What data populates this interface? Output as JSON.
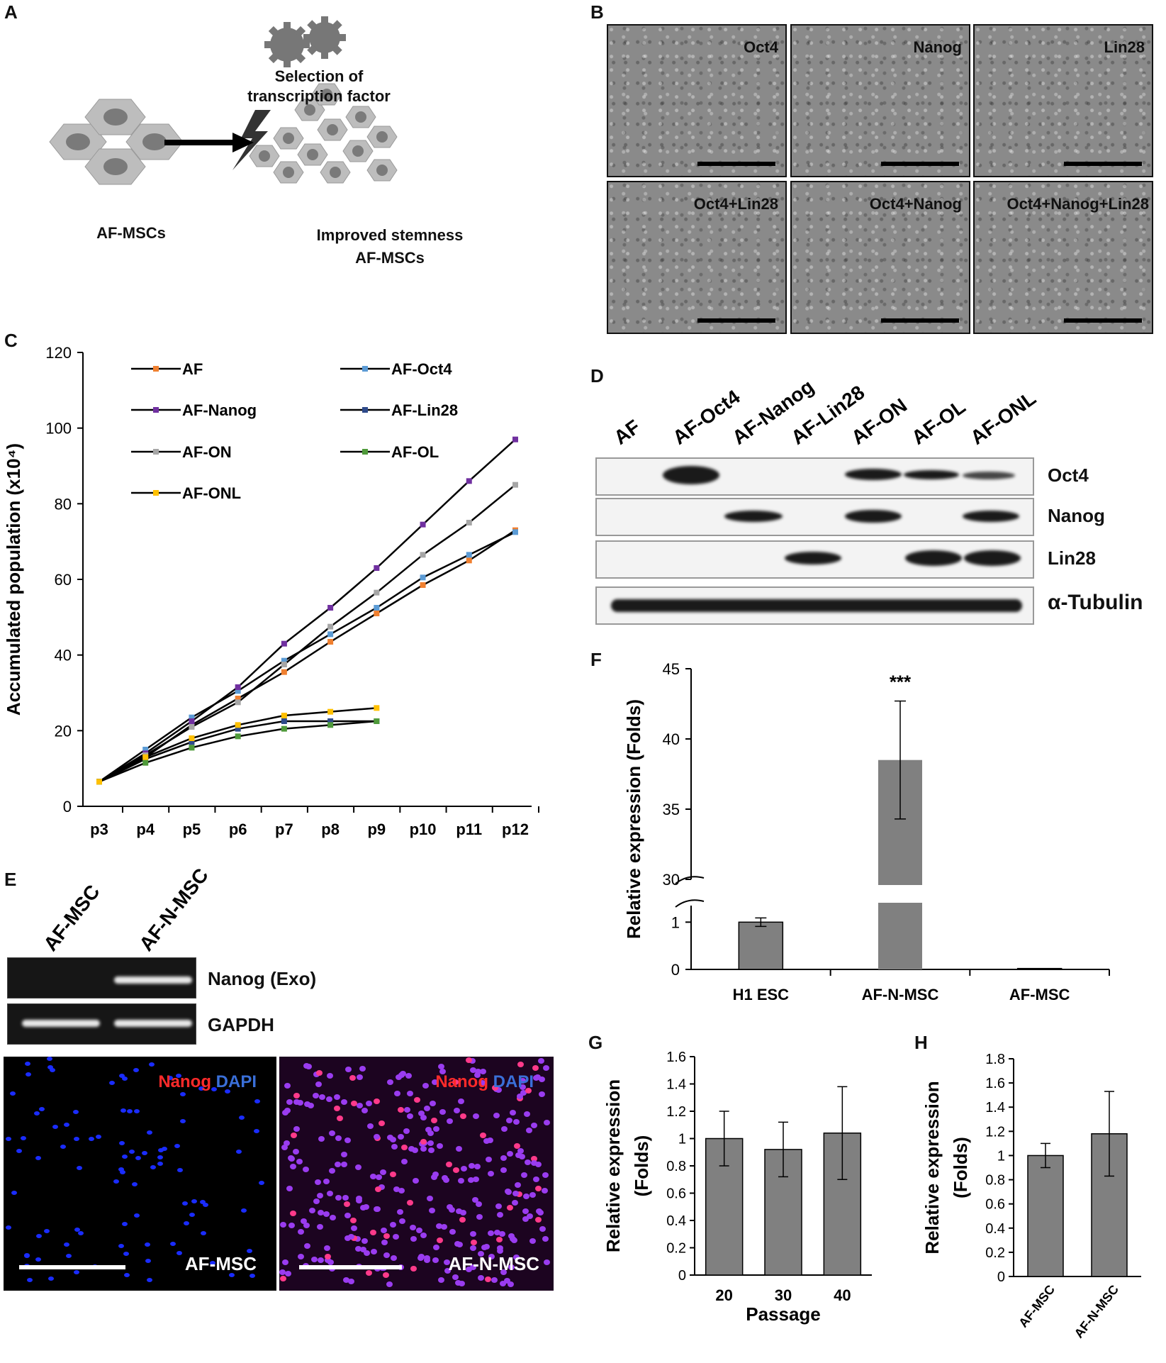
{
  "panels": {
    "a": {
      "letter": "A",
      "top_label_1": "Selection of",
      "top_label_2": "transcription factor",
      "left_label": "AF-MSCs",
      "right_label_1": "Improved stemness",
      "right_label_2": "AF-MSCs"
    },
    "b": {
      "letter": "B",
      "images": [
        "Oct4",
        "Nanog",
        "Lin28",
        "Oct4+Lin28",
        "Oct4+Nanog",
        "Oct4+Nanog+Lin28"
      ]
    },
    "c": {
      "letter": "C"
    },
    "d": {
      "letter": "D",
      "lanes": [
        "AF",
        "AF-Oct4",
        "AF-Nanog",
        "AF-Lin28",
        "AF-ON",
        "AF-OL",
        "AF-ONL"
      ],
      "rows": [
        "Oct4",
        "Nanog",
        "Lin28",
        "α-Tubulin"
      ]
    },
    "e": {
      "letter": "E",
      "lanes": [
        "AF-MSC",
        "AF-N-MSC"
      ],
      "gel_rows": [
        "Nanog (Exo)",
        "GAPDH"
      ],
      "fluor_red": "Nanog",
      "fluor_blue": "DAPI",
      "fluor_left": "AF-MSC",
      "fluor_right": "AF-N-MSC"
    },
    "f": {
      "letter": "F"
    },
    "g": {
      "letter": "G"
    },
    "h": {
      "letter": "H"
    }
  },
  "chart_data": [
    {
      "panel": "C",
      "type": "line",
      "ylabel": "Accumulated population (x10⁴)",
      "ylim": [
        0,
        120
      ],
      "yticks": [
        0,
        20,
        40,
        60,
        80,
        100,
        120
      ],
      "categories": [
        "p3",
        "p4",
        "p5",
        "p6",
        "p7",
        "p8",
        "p9",
        "p10",
        "p11",
        "p12"
      ],
      "legend_placement": "top-left",
      "series": [
        {
          "name": "AF",
          "color": "#f08030",
          "values": [
            6.5,
            13,
            21.5,
            28.5,
            35.5,
            43.5,
            51,
            58.5,
            65,
            73
          ]
        },
        {
          "name": "AF-Oct4",
          "color": "#5b9bd5",
          "values": [
            6.5,
            15,
            23.5,
            30.5,
            38.5,
            45.5,
            52.5,
            60.5,
            66.5,
            72.5
          ]
        },
        {
          "name": "AF-Nanog",
          "color": "#7030a0",
          "values": [
            6.5,
            14,
            22.5,
            31.5,
            43,
            52.5,
            63,
            74.5,
            86,
            97
          ]
        },
        {
          "name": "AF-Lin28",
          "color": "#2e4a8a",
          "values": [
            6.5,
            12.5,
            17,
            20.5,
            22.5,
            22.5,
            22.5,
            null,
            null,
            null
          ]
        },
        {
          "name": "AF-ON",
          "color": "#a6a6a6",
          "values": [
            6.5,
            13.5,
            21,
            27.5,
            37.5,
            47.5,
            56.5,
            66.5,
            75,
            85
          ]
        },
        {
          "name": "AF-OL",
          "color": "#4f9a3a",
          "values": [
            6.5,
            11.5,
            15.5,
            18.5,
            20.5,
            21.5,
            22.5,
            null,
            null,
            null
          ]
        },
        {
          "name": "AF-ONL",
          "color": "#ffc000",
          "values": [
            6.5,
            13,
            18,
            21.5,
            24,
            25,
            26,
            null,
            null,
            null
          ]
        }
      ]
    },
    {
      "panel": "F",
      "type": "bar",
      "ylabel": "Relative expression (Folds)",
      "categories": [
        "H1 ESC",
        "AF-N-MSC",
        "AF-MSC"
      ],
      "values": [
        1.0,
        38.5,
        0.02
      ],
      "errors": [
        0.09,
        4.2,
        0.0
      ],
      "axis_break": true,
      "lower_yticks": [
        0,
        1
      ],
      "upper_yticks": [
        30,
        35,
        40,
        45
      ],
      "annotation": "***",
      "bar_color": "#808080"
    },
    {
      "panel": "G",
      "type": "bar",
      "ylabel": "Relative expression (Folds)",
      "xlabel": "Passage",
      "categories": [
        "20",
        "30",
        "40"
      ],
      "values": [
        1.0,
        0.92,
        1.04
      ],
      "errors": [
        0.2,
        0.2,
        0.34
      ],
      "ylim": [
        0,
        1.6
      ],
      "yticks": [
        "0",
        "0.2",
        "0.4",
        "0.6",
        "0.8",
        "1",
        "1.2",
        "1.4",
        "1.6"
      ],
      "bar_color": "#808080"
    },
    {
      "panel": "H",
      "type": "bar",
      "ylabel": "Relative expression (Folds)",
      "categories": [
        "AF-MSC",
        "AF-N-MSC"
      ],
      "values": [
        1.0,
        1.18
      ],
      "errors": [
        0.1,
        0.35
      ],
      "ylim": [
        0,
        1.8
      ],
      "yticks": [
        "0",
        "0.2",
        "0.4",
        "0.6",
        "0.8",
        "1",
        "1.2",
        "1.4",
        "1.6",
        "1.8"
      ],
      "bar_color": "#808080"
    }
  ]
}
